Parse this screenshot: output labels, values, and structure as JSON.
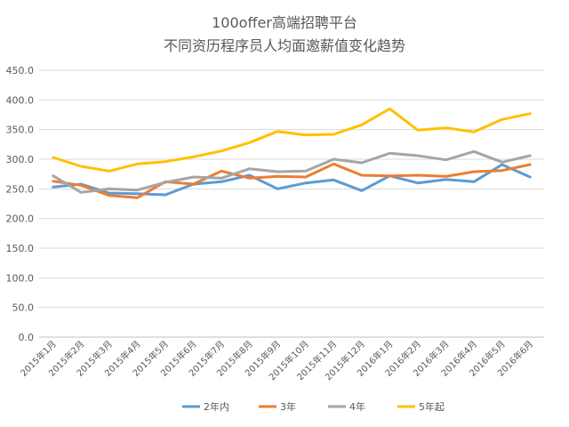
{
  "chart_data": {
    "type": "line",
    "title": "100offer高端招聘平台",
    "subtitle": "不同资历程序员人均面邀薪值变化趋势",
    "xlabel": "",
    "ylabel": "",
    "categories": [
      "2015年1月",
      "2015年2月",
      "2015年3月",
      "2015年4月",
      "2015年5月",
      "2015年6月",
      "2015年7月",
      "2015年8月",
      "2015年9月",
      "2015年10月",
      "2015年11月",
      "2015年12月",
      "2016年1月",
      "2016年2月",
      "2016年3月",
      "2016年4月",
      "2016年5月",
      "2016年6月"
    ],
    "ylim": [
      0,
      450
    ],
    "yticks": [
      "0.0",
      "50.0",
      "100.0",
      "150.0",
      "200.0",
      "250.0",
      "300.0",
      "350.0",
      "400.0",
      "450.0"
    ],
    "grid": true,
    "legend_position": "bottom",
    "series": [
      {
        "name": "2年内",
        "color": "#5B9BD5",
        "values": [
          253,
          258,
          243,
          242,
          240,
          258,
          262,
          273,
          250,
          260,
          265,
          247,
          272,
          260,
          266,
          262,
          291,
          270
        ]
      },
      {
        "name": "3年",
        "color": "#ED7D31",
        "values": [
          263,
          256,
          239,
          235,
          262,
          258,
          280,
          268,
          271,
          270,
          292,
          273,
          272,
          273,
          271,
          279,
          281,
          291
        ]
      },
      {
        "name": "4年",
        "color": "#A5A5A5",
        "values": [
          272,
          244,
          250,
          248,
          261,
          270,
          268,
          284,
          279,
          280,
          300,
          294,
          310,
          306,
          299,
          313,
          295,
          306
        ]
      },
      {
        "name": "5年起",
        "color": "#FFC000",
        "values": [
          303,
          288,
          280,
          292,
          296,
          304,
          314,
          328,
          347,
          341,
          342,
          358,
          385,
          349,
          353,
          346,
          367,
          377
        ]
      }
    ]
  }
}
